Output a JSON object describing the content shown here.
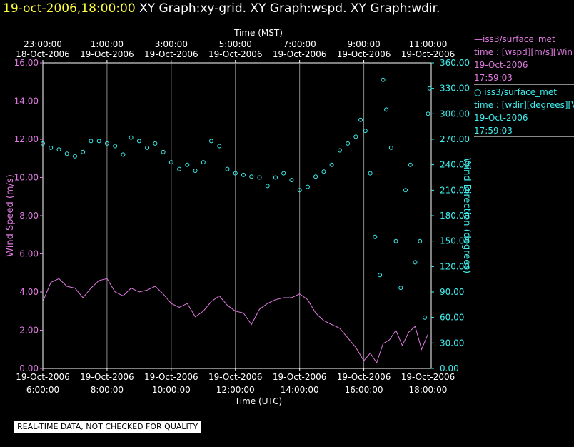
{
  "header": {
    "timestamp": "19-oct-2006,18:00:00",
    "titles": "XY Graph:xy-grid.  XY Graph:wspd.  XY Graph:wdir."
  },
  "legend": {
    "wspd": {
      "name": "iss3/surface_met",
      "desc": "time : [wspd][m/s][Win",
      "date": "19-Oct-2006",
      "time": "17:59:03"
    },
    "wdir": {
      "name": "iss3/surface_met",
      "desc": "time : [wdir][degrees][V",
      "date": "19-Oct-2006",
      "time": "17:59:03"
    }
  },
  "disclaimer": "REAL-TIME DATA, NOT CHECKED FOR QUALITY",
  "colors": {
    "wspd": "#e07be0",
    "wdir": "#3ef0f0",
    "grid": "#888888",
    "axis": "#ffffff"
  },
  "chart_data": {
    "type": "line",
    "top_axis_title": "Time (MST)",
    "bottom_axis_title": "Time (UTC)",
    "ylabel_left": "Wind Speed (m/s)",
    "ylabel_right": "Wind Direction (degrees)",
    "x_range_utc_hours": [
      6.0,
      18.1
    ],
    "ylim_left": [
      0,
      16
    ],
    "ylim_right": [
      0,
      360
    ],
    "yticks_left": [
      "0.00",
      "2.00",
      "4.00",
      "6.00",
      "8.00",
      "10.00",
      "12.00",
      "14.00",
      "16.00"
    ],
    "yticks_right": [
      "0.00",
      "30.00",
      "60.00",
      "90.00",
      "120.00",
      "150.00",
      "180.00",
      "210.00",
      "240.00",
      "270.00",
      "300.00",
      "330.00",
      "360.00"
    ],
    "xticks_bottom": [
      {
        "hour": 6,
        "date": "19-Oct-2006",
        "time": "6:00:00"
      },
      {
        "hour": 8,
        "date": "19-Oct-2006",
        "time": "8:00:00"
      },
      {
        "hour": 10,
        "date": "19-Oct-2006",
        "time": "10:00:00"
      },
      {
        "hour": 12,
        "date": "19-Oct-2006",
        "time": "12:00:00"
      },
      {
        "hour": 14,
        "date": "19-Oct-2006",
        "time": "14:00:00"
      },
      {
        "hour": 16,
        "date": "19-Oct-2006",
        "time": "16:00:00"
      },
      {
        "hour": 18,
        "date": "19-Oct-2006",
        "time": "18:00:00"
      }
    ],
    "xticks_top": [
      {
        "hour": 6,
        "time": "23:00:00",
        "date": "18-Oct-2006"
      },
      {
        "hour": 8,
        "time": "1:00:00",
        "date": "19-Oct-2006"
      },
      {
        "hour": 10,
        "time": "3:00:00",
        "date": "19-Oct-2006"
      },
      {
        "hour": 12,
        "time": "5:00:00",
        "date": "19-Oct-2006"
      },
      {
        "hour": 14,
        "time": "7:00:00",
        "date": "19-Oct-2006"
      },
      {
        "hour": 16,
        "time": "9:00:00",
        "date": "19-Oct-2006"
      },
      {
        "hour": 18,
        "time": "11:00:00",
        "date": "19-Oct-2006"
      }
    ],
    "series": [
      {
        "name": "wspd",
        "axis": "left",
        "style": "line",
        "points": [
          [
            6.0,
            3.5
          ],
          [
            6.25,
            4.5
          ],
          [
            6.5,
            4.7
          ],
          [
            6.75,
            4.3
          ],
          [
            7.0,
            4.2
          ],
          [
            7.25,
            3.7
          ],
          [
            7.5,
            4.2
          ],
          [
            7.75,
            4.6
          ],
          [
            8.0,
            4.7
          ],
          [
            8.25,
            4.0
          ],
          [
            8.5,
            3.8
          ],
          [
            8.75,
            4.2
          ],
          [
            9.0,
            4.0
          ],
          [
            9.25,
            4.1
          ],
          [
            9.5,
            4.3
          ],
          [
            9.75,
            3.9
          ],
          [
            10.0,
            3.4
          ],
          [
            10.25,
            3.2
          ],
          [
            10.5,
            3.4
          ],
          [
            10.75,
            2.7
          ],
          [
            11.0,
            3.0
          ],
          [
            11.25,
            3.5
          ],
          [
            11.5,
            3.8
          ],
          [
            11.75,
            3.3
          ],
          [
            12.0,
            3.0
          ],
          [
            12.25,
            2.9
          ],
          [
            12.5,
            2.3
          ],
          [
            12.75,
            3.1
          ],
          [
            13.0,
            3.4
          ],
          [
            13.25,
            3.6
          ],
          [
            13.5,
            3.7
          ],
          [
            13.75,
            3.7
          ],
          [
            14.0,
            3.9
          ],
          [
            14.25,
            3.6
          ],
          [
            14.5,
            2.9
          ],
          [
            14.75,
            2.5
          ],
          [
            15.0,
            2.3
          ],
          [
            15.25,
            2.1
          ],
          [
            15.5,
            1.6
          ],
          [
            15.75,
            1.1
          ],
          [
            16.0,
            0.4
          ],
          [
            16.2,
            0.8
          ],
          [
            16.4,
            0.3
          ],
          [
            16.6,
            1.3
          ],
          [
            16.8,
            1.5
          ],
          [
            17.0,
            2.0
          ],
          [
            17.2,
            1.2
          ],
          [
            17.4,
            1.9
          ],
          [
            17.6,
            2.2
          ],
          [
            17.8,
            1.0
          ],
          [
            18.0,
            1.8
          ]
        ]
      },
      {
        "name": "wdir",
        "axis": "right",
        "style": "markers",
        "points": [
          [
            6.0,
            265
          ],
          [
            6.25,
            260
          ],
          [
            6.5,
            258
          ],
          [
            6.75,
            253
          ],
          [
            7.0,
            250
          ],
          [
            7.25,
            255
          ],
          [
            7.5,
            268
          ],
          [
            7.75,
            268
          ],
          [
            8.0,
            265
          ],
          [
            8.25,
            262
          ],
          [
            8.5,
            252
          ],
          [
            8.75,
            272
          ],
          [
            9.0,
            268
          ],
          [
            9.25,
            260
          ],
          [
            9.5,
            265
          ],
          [
            9.75,
            255
          ],
          [
            10.0,
            243
          ],
          [
            10.25,
            235
          ],
          [
            10.5,
            240
          ],
          [
            10.75,
            233
          ],
          [
            11.0,
            243
          ],
          [
            11.25,
            268
          ],
          [
            11.5,
            262
          ],
          [
            11.75,
            235
          ],
          [
            12.0,
            230
          ],
          [
            12.25,
            228
          ],
          [
            12.5,
            226
          ],
          [
            12.75,
            225
          ],
          [
            13.0,
            215
          ],
          [
            13.25,
            225
          ],
          [
            13.5,
            230
          ],
          [
            13.75,
            222
          ],
          [
            14.0,
            210
          ],
          [
            14.25,
            214
          ],
          [
            14.5,
            226
          ],
          [
            14.75,
            232
          ],
          [
            15.0,
            240
          ],
          [
            15.25,
            257
          ],
          [
            15.5,
            265
          ],
          [
            15.75,
            273
          ],
          [
            15.9,
            293
          ],
          [
            16.05,
            280
          ],
          [
            16.2,
            230
          ],
          [
            16.35,
            155
          ],
          [
            16.5,
            110
          ],
          [
            16.6,
            340
          ],
          [
            16.7,
            305
          ],
          [
            16.85,
            260
          ],
          [
            17.0,
            150
          ],
          [
            17.15,
            95
          ],
          [
            17.3,
            210
          ],
          [
            17.45,
            240
          ],
          [
            17.6,
            125
          ],
          [
            17.75,
            150
          ],
          [
            17.9,
            60
          ],
          [
            18.0,
            300
          ],
          [
            18.05,
            330
          ]
        ]
      }
    ]
  }
}
